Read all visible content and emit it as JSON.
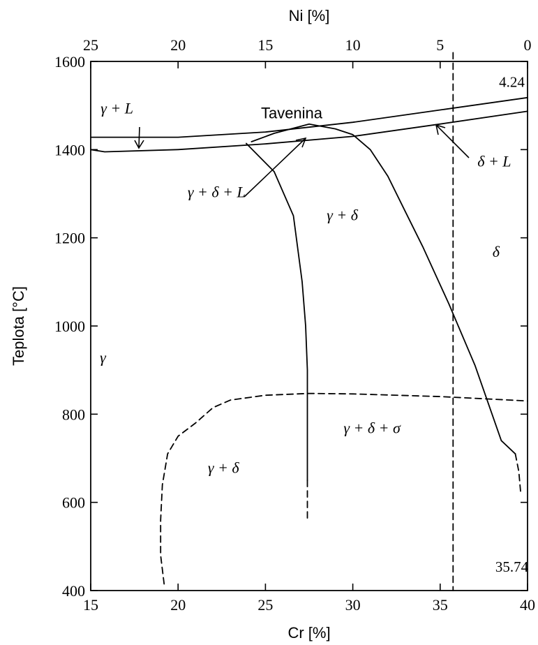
{
  "chart_data": {
    "type": "line",
    "title": "",
    "xlabel": "Cr [%]",
    "x2label": "Ni [%]",
    "ylabel": "Teplota [°C]",
    "xlim": [
      15,
      40
    ],
    "x2lim": [
      25,
      0
    ],
    "ylim": [
      400,
      1600
    ],
    "x_ticks": [
      "15",
      "20",
      "25",
      "30",
      "35",
      "40"
    ],
    "x2_ticks": [
      "25",
      "20",
      "15",
      "10",
      "5",
      "0"
    ],
    "y_ticks": [
      "400",
      "600",
      "800",
      "1000",
      "1200",
      "1400",
      "1600"
    ],
    "grid": false,
    "series": [
      {
        "style": "solid",
        "points": [
          [
            15,
            1428
          ],
          [
            20,
            1428
          ],
          [
            25,
            1440
          ],
          [
            30,
            1462
          ],
          [
            35,
            1490
          ],
          [
            40,
            1518
          ]
        ]
      },
      {
        "style": "solid",
        "points": [
          [
            15,
            1400
          ],
          [
            15.8,
            1395
          ],
          [
            20,
            1400
          ],
          [
            25,
            1413
          ],
          [
            30,
            1430
          ],
          [
            35,
            1458
          ],
          [
            40,
            1487
          ]
        ]
      },
      {
        "style": "solid",
        "points": [
          [
            23.9,
            1414
          ],
          [
            25.5,
            1350
          ],
          [
            26.6,
            1250
          ],
          [
            27.1,
            1100
          ],
          [
            27.3,
            1000
          ],
          [
            27.4,
            900
          ],
          [
            27.4,
            800
          ],
          [
            27.4,
            700
          ],
          [
            27.4,
            650
          ]
        ]
      },
      {
        "style": "dashed",
        "points": [
          [
            27.4,
            650
          ],
          [
            27.4,
            560
          ]
        ]
      },
      {
        "style": "solid",
        "points": [
          [
            24.2,
            1418
          ],
          [
            25.5,
            1437
          ],
          [
            27.5,
            1458
          ],
          [
            29,
            1447
          ],
          [
            30,
            1434
          ],
          [
            31,
            1400
          ],
          [
            32,
            1340
          ],
          [
            33,
            1260
          ],
          [
            34,
            1180
          ],
          [
            35.5,
            1050
          ],
          [
            37,
            910
          ],
          [
            38.5,
            740
          ],
          [
            39.3,
            710
          ]
        ]
      },
      {
        "style": "dashed",
        "points": [
          [
            39.3,
            710
          ],
          [
            39.5,
            670
          ],
          [
            39.6,
            625
          ]
        ]
      },
      {
        "style": "dashed",
        "points": [
          [
            19.2,
            415
          ],
          [
            19,
            480
          ],
          [
            19,
            560
          ],
          [
            19.1,
            640
          ],
          [
            19.4,
            710
          ],
          [
            20,
            750
          ],
          [
            21,
            780
          ],
          [
            22,
            815
          ],
          [
            23,
            832
          ],
          [
            25,
            843
          ],
          [
            27.5,
            847
          ],
          [
            30,
            846
          ],
          [
            35,
            840
          ],
          [
            40,
            830
          ]
        ]
      },
      {
        "style": "dashed",
        "points": [
          [
            35.74,
            1620
          ],
          [
            35.74,
            400
          ]
        ]
      }
    ],
    "annotations": [
      {
        "text": "4.24",
        "x": 39.1,
        "y": 1550
      },
      {
        "text": "35.74",
        "x": 39.1,
        "y": 450
      },
      {
        "text": "Tavenina",
        "x": 26.5,
        "y": 1480
      },
      {
        "text": "γ + L",
        "x": 16.5,
        "y": 1490
      },
      {
        "text": "γ + δ + L",
        "x": 22.2,
        "y": 1300
      },
      {
        "text": "γ + δ",
        "x": 29.4,
        "y": 1248
      },
      {
        "text": "δ + L",
        "x": 38.1,
        "y": 1370
      },
      {
        "text": "δ",
        "x": 38.2,
        "y": 1165
      },
      {
        "text": "γ",
        "x": 15.7,
        "y": 925
      },
      {
        "text": "γ + δ + σ",
        "x": 31.1,
        "y": 765
      },
      {
        "text": "γ + δ",
        "x": 22.6,
        "y": 675
      }
    ]
  }
}
